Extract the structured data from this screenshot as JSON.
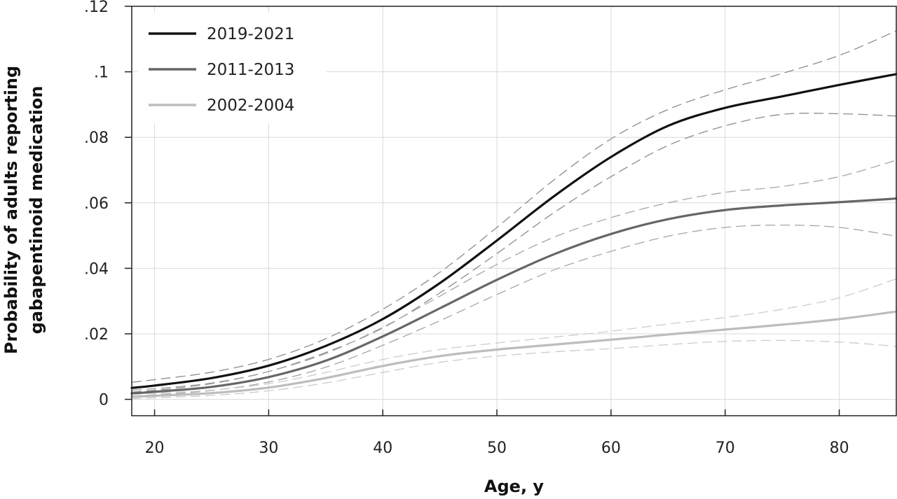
{
  "chart_data": {
    "type": "line",
    "xlabel": "Age, y",
    "ylabel": [
      "Probability of adults reporting",
      "gabapentinoid medication"
    ],
    "xlim": [
      18,
      85
    ],
    "ylim": [
      -0.005,
      0.12
    ],
    "x_ticks": [
      20,
      30,
      40,
      50,
      60,
      70,
      80
    ],
    "x_tick_labels": [
      "20",
      "30",
      "40",
      "50",
      "60",
      "70",
      "80"
    ],
    "y_ticks": [
      0,
      0.02,
      0.04,
      0.06,
      0.08,
      0.1,
      0.12
    ],
    "y_tick_labels": [
      "0",
      ".02",
      ".04",
      ".06",
      ".08",
      ".1",
      ".12"
    ],
    "grid": true,
    "legend_position": "top-left",
    "x": [
      18,
      20,
      25,
      30,
      35,
      40,
      45,
      50,
      55,
      60,
      65,
      70,
      75,
      80,
      85
    ],
    "series": [
      {
        "name": "2019-2021",
        "color": "#111111",
        "values": [
          0.0035,
          0.0042,
          0.0065,
          0.0103,
          0.0163,
          0.0245,
          0.0355,
          0.0485,
          0.062,
          0.074,
          0.0835,
          0.089,
          0.0925,
          0.096,
          0.0993
        ],
        "ci_lower": [
          0.0022,
          0.0028,
          0.0048,
          0.0085,
          0.0143,
          0.0218,
          0.0325,
          0.0445,
          0.057,
          0.068,
          0.0775,
          0.0835,
          0.087,
          0.0872,
          0.0865
        ],
        "ci_upper": [
          0.0052,
          0.006,
          0.0083,
          0.0122,
          0.0185,
          0.0275,
          0.0388,
          0.0525,
          0.067,
          0.0795,
          0.0885,
          0.0945,
          0.0995,
          0.105,
          0.1125
        ]
      },
      {
        "name": "2011-2013",
        "color": "#666666",
        "values": [
          0.0018,
          0.0023,
          0.0038,
          0.0068,
          0.0118,
          0.0192,
          0.0278,
          0.0365,
          0.0443,
          0.0505,
          0.055,
          0.0578,
          0.0592,
          0.0602,
          0.0613
        ],
        "ci_lower": [
          0.001,
          0.0014,
          0.0027,
          0.0053,
          0.0098,
          0.0165,
          0.024,
          0.032,
          0.0395,
          0.0452,
          0.0498,
          0.0525,
          0.0532,
          0.0525,
          0.0498
        ],
        "ci_upper": [
          0.0028,
          0.0033,
          0.005,
          0.0085,
          0.014,
          0.022,
          0.0315,
          0.0412,
          0.0495,
          0.0555,
          0.06,
          0.0632,
          0.065,
          0.068,
          0.073
        ]
      },
      {
        "name": "2002-2004",
        "color": "#bdbdbd",
        "values": [
          0.0008,
          0.0011,
          0.0019,
          0.0036,
          0.0065,
          0.0102,
          0.0132,
          0.0152,
          0.0167,
          0.0182,
          0.0198,
          0.0213,
          0.0228,
          0.0245,
          0.0268
        ],
        "ci_lower": [
          0.0002,
          0.0005,
          0.0012,
          0.0026,
          0.005,
          0.0082,
          0.0113,
          0.0132,
          0.0145,
          0.0155,
          0.0167,
          0.0177,
          0.018,
          0.0175,
          0.0162
        ],
        "ci_upper": [
          0.0016,
          0.0019,
          0.0028,
          0.0048,
          0.0082,
          0.0122,
          0.0152,
          0.0172,
          0.019,
          0.0208,
          0.023,
          0.025,
          0.0275,
          0.031,
          0.0368
        ]
      }
    ]
  }
}
